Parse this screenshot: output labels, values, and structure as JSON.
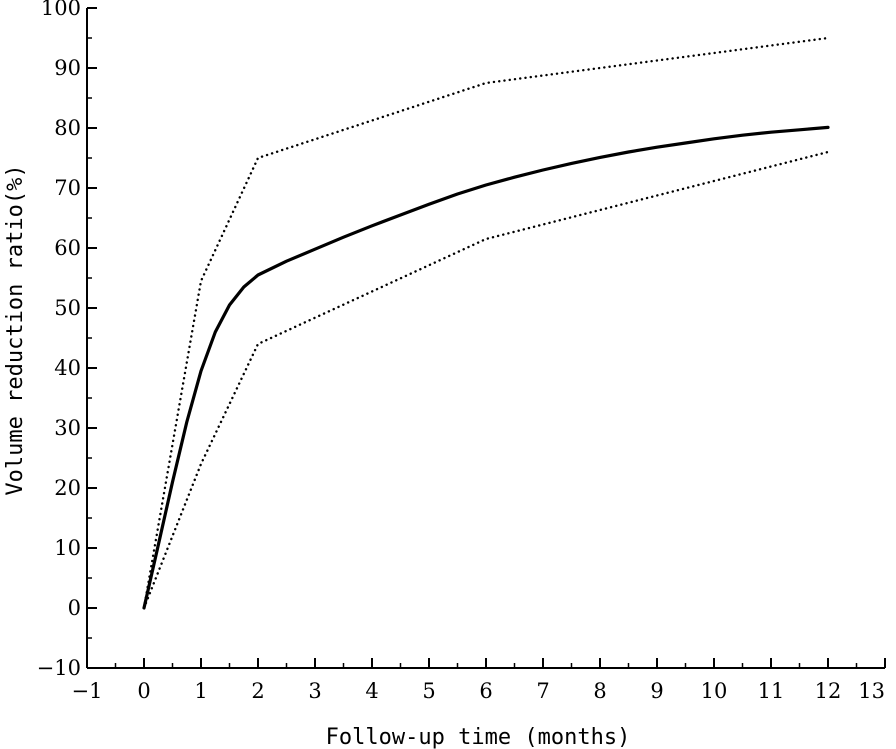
{
  "chart_data": {
    "type": "line",
    "title": "",
    "xlabel": "Follow-up time (months)",
    "ylabel": "Volume reduction ratio(%)",
    "xlim": [
      -1,
      13
    ],
    "ylim": [
      -10,
      100
    ],
    "xticks": [
      -1,
      0,
      1,
      2,
      3,
      4,
      5,
      6,
      7,
      8,
      9,
      10,
      11,
      12,
      13
    ],
    "yticks": [
      -10,
      0,
      10,
      20,
      30,
      40,
      50,
      60,
      70,
      80,
      90,
      100
    ],
    "xtick_labels": [
      "−1",
      "0",
      "1",
      "2",
      "3",
      "4",
      "5",
      "6",
      "7",
      "8",
      "9",
      "10",
      "11",
      "12",
      "13"
    ],
    "ytick_labels": [
      "−10",
      "0",
      "10",
      "20",
      "30",
      "40",
      "50",
      "60",
      "70",
      "80",
      "90",
      "100"
    ],
    "grid": false,
    "legend": "none",
    "series": [
      {
        "style": "solid",
        "x": [
          0,
          0.25,
          0.5,
          0.75,
          1,
          1.25,
          1.5,
          1.75,
          2,
          2.5,
          3,
          3.5,
          4,
          4.5,
          5,
          5.5,
          6,
          6.5,
          7,
          7.5,
          8,
          8.5,
          9,
          9.5,
          10,
          10.5,
          11,
          11.5,
          12
        ],
        "y": [
          0,
          10.5,
          21,
          31,
          39.5,
          46,
          50.5,
          53.5,
          55.5,
          57.8,
          59.8,
          61.8,
          63.7,
          65.5,
          67.3,
          69,
          70.5,
          71.8,
          73,
          74.1,
          75.1,
          76,
          76.8,
          77.5,
          78.2,
          78.8,
          79.3,
          79.7,
          80.1
        ]
      },
      {
        "style": "dotted",
        "x": [
          0,
          1,
          2,
          6,
          12
        ],
        "y": [
          0,
          54.5,
          75,
          87.5,
          95
        ]
      },
      {
        "style": "dotted",
        "x": [
          0,
          1,
          2,
          6,
          12
        ],
        "y": [
          0,
          24,
          44,
          61.5,
          76
        ]
      }
    ]
  }
}
